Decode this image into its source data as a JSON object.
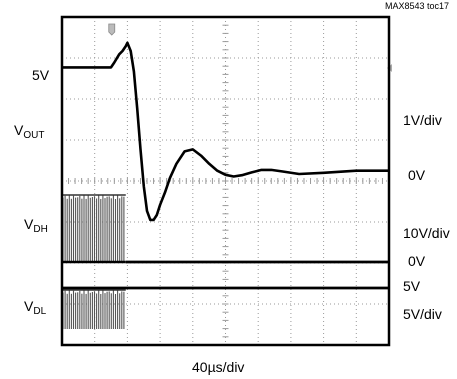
{
  "figure_tag": "MAX8543 toc17",
  "labels": {
    "left_5v": "5V",
    "vout_main": "V",
    "vout_sub": "OUT",
    "vdh_main": "V",
    "vdh_sub": "DH",
    "vdl_main": "V",
    "vdl_sub": "DL",
    "right_vout_scale": "1V/div",
    "right_vout_zero": "0V",
    "right_vdh_scale": "10V/div",
    "right_vdh_zero": "0V",
    "right_vdl_level": "5V",
    "right_vdl_scale": "5V/div",
    "time_scale": "40µs/div"
  },
  "chart_data": {
    "type": "line",
    "title": "",
    "xlabel": "40µs/div",
    "grid": {
      "divisions_x": 10,
      "divisions_y": 8,
      "style": "dotted"
    },
    "x_unit": "µs",
    "xlim": [
      0,
      400
    ],
    "ylim_div": [
      0,
      8
    ],
    "series": [
      {
        "name": "VOUT",
        "scale": "1V/div",
        "note": "y in divisions above VOUT 0V reference",
        "x": [
          0,
          20,
          40,
          60,
          64,
          70,
          74,
          78,
          80,
          84,
          88,
          92,
          96,
          100,
          104,
          108,
          112,
          116,
          120,
          126,
          132,
          140,
          150,
          160,
          170,
          180,
          190,
          200,
          210,
          220,
          232,
          244,
          256,
          270,
          290,
          320,
          360,
          400
        ],
        "y": [
          2.6,
          2.6,
          2.6,
          2.6,
          2.72,
          2.92,
          3.0,
          3.12,
          3.2,
          3.0,
          2.5,
          1.6,
          0.6,
          -0.3,
          -0.9,
          -1.12,
          -1.12,
          -1.0,
          -0.75,
          -0.45,
          -0.1,
          0.25,
          0.55,
          0.6,
          0.45,
          0.25,
          0.08,
          -0.02,
          -0.06,
          -0.03,
          0.04,
          0.1,
          0.1,
          0.06,
          0.0,
          0.03,
          0.08,
          0.08
        ]
      },
      {
        "name": "VDH",
        "scale": "10V/div",
        "note": "switching burst until t=78µs, then flat at 0V",
        "burst_end_x": 78,
        "level_div": 0
      },
      {
        "name": "VDL",
        "scale": "5V/div",
        "note": "switching burst until t=78µs, then flat at 5V",
        "burst_end_x": 78,
        "level_div": 1
      }
    ]
  }
}
